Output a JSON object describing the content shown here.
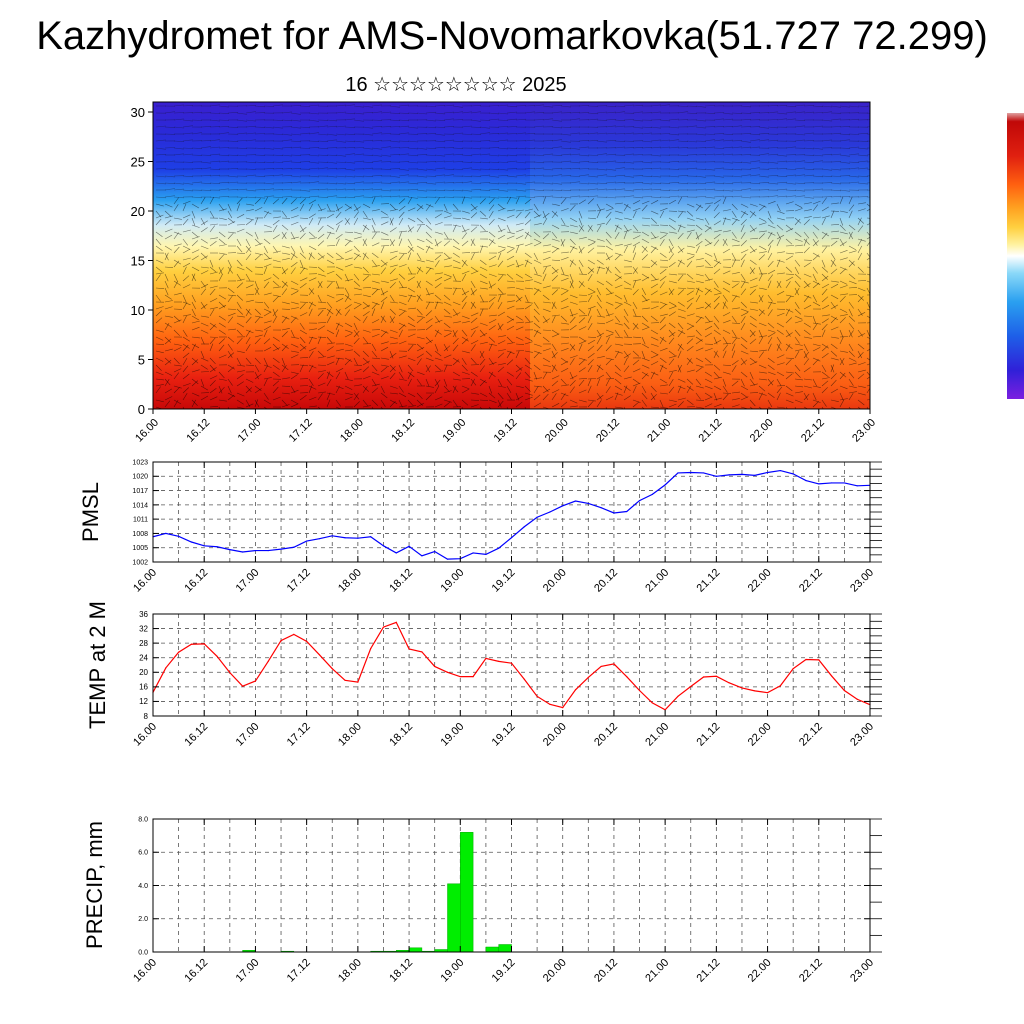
{
  "header": {
    "title": "Kazhydromet for AMS-Novomarkovka(51.727 72.299)",
    "subtitle": "16 ☆☆☆☆☆☆☆☆ 2025"
  },
  "time_labels": [
    "16.00",
    "16.12",
    "17.00",
    "17.12",
    "18.00",
    "18.12",
    "19.00",
    "19.12",
    "20.00",
    "20.12",
    "21.00",
    "21.12",
    "22.00",
    "22.12",
    "23.00"
  ],
  "chart_data": [
    {
      "type": "heatmap",
      "ylim": [
        0,
        30
      ],
      "y_ticks": [
        "0",
        "5",
        "10",
        "15",
        "20",
        "25",
        "30"
      ],
      "x_ticks": [
        "16.00",
        "16.12",
        "17.00",
        "17.12",
        "18.00",
        "18.12",
        "19.00",
        "19.12",
        "20.00",
        "20.12",
        "21.00",
        "21.12",
        "22.00",
        "22.12",
        "23.00"
      ],
      "colorbar": [
        "#7b1fe0",
        "#3020d8",
        "#1e5fe8",
        "#2aa0f0",
        "#8ad8f8",
        "#ffffff",
        "#fff2a0",
        "#ffd040",
        "#ffa020",
        "#ff6010",
        "#e02010",
        "#c00808",
        "#e0a0a0"
      ]
    },
    {
      "type": "line",
      "ylabel": "PMSL",
      "ylim": [
        1002,
        1023
      ],
      "y_ticks": [
        "1002",
        "1005",
        "1008",
        "1011",
        "1014",
        "1017",
        "1020",
        "1023"
      ],
      "x_ticks": [
        "16.00",
        "16.12",
        "17.00",
        "17.12",
        "18.00",
        "18.12",
        "19.00",
        "19.12",
        "20.00",
        "20.12",
        "21.00",
        "21.12",
        "22.00",
        "22.12",
        "23.00"
      ],
      "color": "#0000ff",
      "series": [
        {
          "x": [
            0,
            3,
            6,
            9,
            12,
            15,
            18,
            21,
            24,
            27,
            30,
            33,
            36,
            39,
            42,
            45,
            48,
            51,
            54,
            57,
            60,
            63,
            66,
            69,
            72,
            75,
            78,
            81,
            84,
            87,
            90,
            93,
            96,
            99,
            102,
            105,
            108,
            111,
            114,
            117,
            120,
            123,
            126,
            129,
            132,
            135,
            138,
            141,
            144,
            147,
            150,
            153,
            156,
            159,
            162,
            165,
            168
          ],
          "values": [
            1007.3,
            1008.0,
            1007.4,
            1006.2,
            1005.4,
            1005.2,
            1004.6,
            1004.1,
            1004.4,
            1004.4,
            1004.7,
            1005.1,
            1006.4,
            1006.9,
            1007.5,
            1007.1,
            1007.0,
            1007.3,
            1005.4,
            1003.9,
            1005.3,
            1003.3,
            1004.2,
            1002.6,
            1002.7,
            1003.9,
            1003.6,
            1004.9,
            1007.1,
            1009.4,
            1011.4,
            1012.5,
            1013.8,
            1014.8,
            1014.3,
            1013.4,
            1012.3,
            1012.6,
            1014.9,
            1016.2,
            1018.2,
            1020.7,
            1020.8,
            1020.7,
            1020.0,
            1020.3,
            1020.4,
            1020.2,
            1020.8,
            1021.2,
            1020.5,
            1019.1,
            1018.4,
            1018.6,
            1018.6,
            1018.0,
            1018.1
          ]
        }
      ]
    },
    {
      "type": "line",
      "ylabel": "TEMP at 2 M",
      "ylim": [
        8,
        36
      ],
      "y_ticks": [
        "8",
        "12",
        "16",
        "20",
        "24",
        "28",
        "32",
        "36"
      ],
      "x_ticks": [
        "16.00",
        "16.12",
        "17.00",
        "17.12",
        "18.00",
        "18.12",
        "19.00",
        "19.12",
        "20.00",
        "20.12",
        "21.00",
        "21.12",
        "22.00",
        "22.12",
        "23.00"
      ],
      "color": "#ff0000",
      "series": [
        {
          "x": [
            0,
            3,
            6,
            9,
            12,
            15,
            18,
            21,
            24,
            27,
            30,
            33,
            36,
            39,
            42,
            45,
            48,
            51,
            54,
            57,
            60,
            63,
            66,
            69,
            72,
            75,
            78,
            81,
            84,
            87,
            90,
            93,
            96,
            99,
            102,
            105,
            108,
            111,
            114,
            117,
            120,
            123,
            126,
            129,
            132,
            135,
            138,
            141,
            144,
            147,
            150,
            153,
            156,
            159,
            162,
            165,
            168
          ],
          "values": [
            14.5,
            21.2,
            25.5,
            27.7,
            27.8,
            24.4,
            19.9,
            16.2,
            17.6,
            23.0,
            28.7,
            30.4,
            28.5,
            24.8,
            21.0,
            17.8,
            17.3,
            26.5,
            32.4,
            33.7,
            26.4,
            25.6,
            21.6,
            20.0,
            18.8,
            18.8,
            23.8,
            23.0,
            22.5,
            18.1,
            13.4,
            11.2,
            10.3,
            15.2,
            18.6,
            21.6,
            22.3,
            18.8,
            15.0,
            11.6,
            9.7,
            13.4,
            16.1,
            18.7,
            18.9,
            17.1,
            15.7,
            14.9,
            14.4,
            16.3,
            21.0,
            23.5,
            23.4,
            19.0,
            15.0,
            12.6,
            11.1
          ]
        }
      ]
    },
    {
      "type": "bar",
      "ylabel": "PRECIP, mm",
      "ylim": [
        0,
        8
      ],
      "y_ticks": [
        "0.0",
        "2.0",
        "4.0",
        "6.0",
        "8.0"
      ],
      "x_ticks": [
        "16.00",
        "16.12",
        "17.00",
        "17.12",
        "18.00",
        "18.12",
        "19.00",
        "19.12",
        "20.00",
        "20.12",
        "21.00",
        "21.12",
        "22.00",
        "22.12",
        "23.00"
      ],
      "color": "#00ee00",
      "x": [
        24,
        33,
        54,
        57,
        60,
        63,
        66,
        69,
        72,
        75,
        78,
        81,
        84
      ],
      "values": [
        0.1,
        0.05,
        0.05,
        0.05,
        0.1,
        0.25,
        0.05,
        0.15,
        4.1,
        7.2,
        0.0,
        0.3,
        0.45
      ]
    }
  ]
}
